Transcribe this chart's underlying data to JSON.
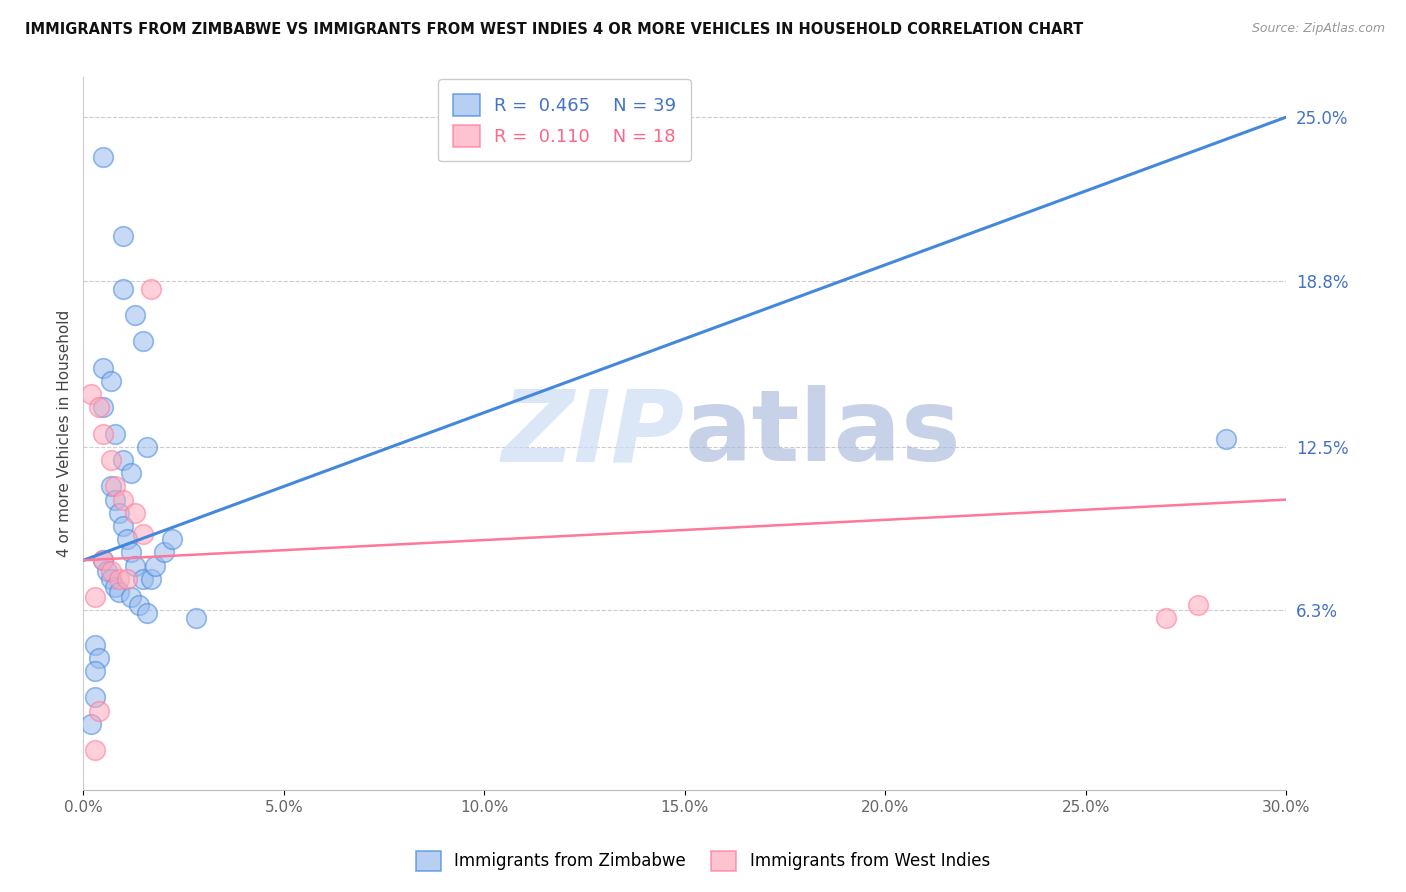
{
  "title": "IMMIGRANTS FROM ZIMBABWE VS IMMIGRANTS FROM WEST INDIES 4 OR MORE VEHICLES IN HOUSEHOLD CORRELATION CHART",
  "source": "Source: ZipAtlas.com",
  "ylabel": "4 or more Vehicles in Household",
  "R_blue": 0.465,
  "N_blue": 39,
  "R_pink": 0.11,
  "N_pink": 18,
  "xlim": [
    0.0,
    0.3
  ],
  "ylim": [
    -0.005,
    0.265
  ],
  "right_ytick_labels": [
    "6.3%",
    "12.5%",
    "18.8%",
    "25.0%"
  ],
  "right_ytick_values": [
    0.063,
    0.125,
    0.188,
    0.25
  ],
  "xtick_labels": [
    "0.0%",
    "5.0%",
    "10.0%",
    "15.0%",
    "20.0%",
    "25.0%",
    "30.0%"
  ],
  "xtick_values": [
    0.0,
    0.05,
    0.1,
    0.15,
    0.2,
    0.25,
    0.3
  ],
  "bottom_legend_labels": [
    "Immigrants from Zimbabwe",
    "Immigrants from West Indies"
  ],
  "blue_color": "#99BBEE",
  "pink_color": "#FFAABB",
  "blue_line_color": "#4488DD",
  "pink_line_color": "#FF7799",
  "watermark_zip": "ZIP",
  "watermark_atlas": "atlas",
  "watermark_color_zip": "#CCDDF5",
  "watermark_color_atlas": "#AABBDD",
  "blue_x": [
    0.005,
    0.01,
    0.01,
    0.013,
    0.015,
    0.005,
    0.007,
    0.005,
    0.008,
    0.01,
    0.012,
    0.007,
    0.008,
    0.009,
    0.01,
    0.011,
    0.012,
    0.013,
    0.015,
    0.016,
    0.017,
    0.018,
    0.02,
    0.022,
    0.005,
    0.006,
    0.007,
    0.008,
    0.009,
    0.012,
    0.014,
    0.016,
    0.028,
    0.003,
    0.004,
    0.003,
    0.003,
    0.002,
    0.285
  ],
  "blue_y": [
    0.235,
    0.205,
    0.185,
    0.175,
    0.165,
    0.155,
    0.15,
    0.14,
    0.13,
    0.12,
    0.115,
    0.11,
    0.105,
    0.1,
    0.095,
    0.09,
    0.085,
    0.08,
    0.075,
    0.125,
    0.075,
    0.08,
    0.085,
    0.09,
    0.082,
    0.078,
    0.075,
    0.072,
    0.07,
    0.068,
    0.065,
    0.062,
    0.06,
    0.05,
    0.045,
    0.04,
    0.03,
    0.02,
    0.128
  ],
  "pink_x": [
    0.002,
    0.004,
    0.005,
    0.007,
    0.008,
    0.01,
    0.013,
    0.015,
    0.017,
    0.005,
    0.007,
    0.009,
    0.011,
    0.003,
    0.004,
    0.27,
    0.278,
    0.003
  ],
  "pink_y": [
    0.145,
    0.14,
    0.13,
    0.12,
    0.11,
    0.105,
    0.1,
    0.092,
    0.185,
    0.082,
    0.078,
    0.075,
    0.075,
    0.068,
    0.025,
    0.06,
    0.065,
    0.01
  ],
  "blue_line_x": [
    0.0,
    0.3
  ],
  "blue_line_y": [
    0.082,
    0.25
  ],
  "pink_line_x": [
    0.0,
    0.3
  ],
  "pink_line_y": [
    0.082,
    0.105
  ]
}
